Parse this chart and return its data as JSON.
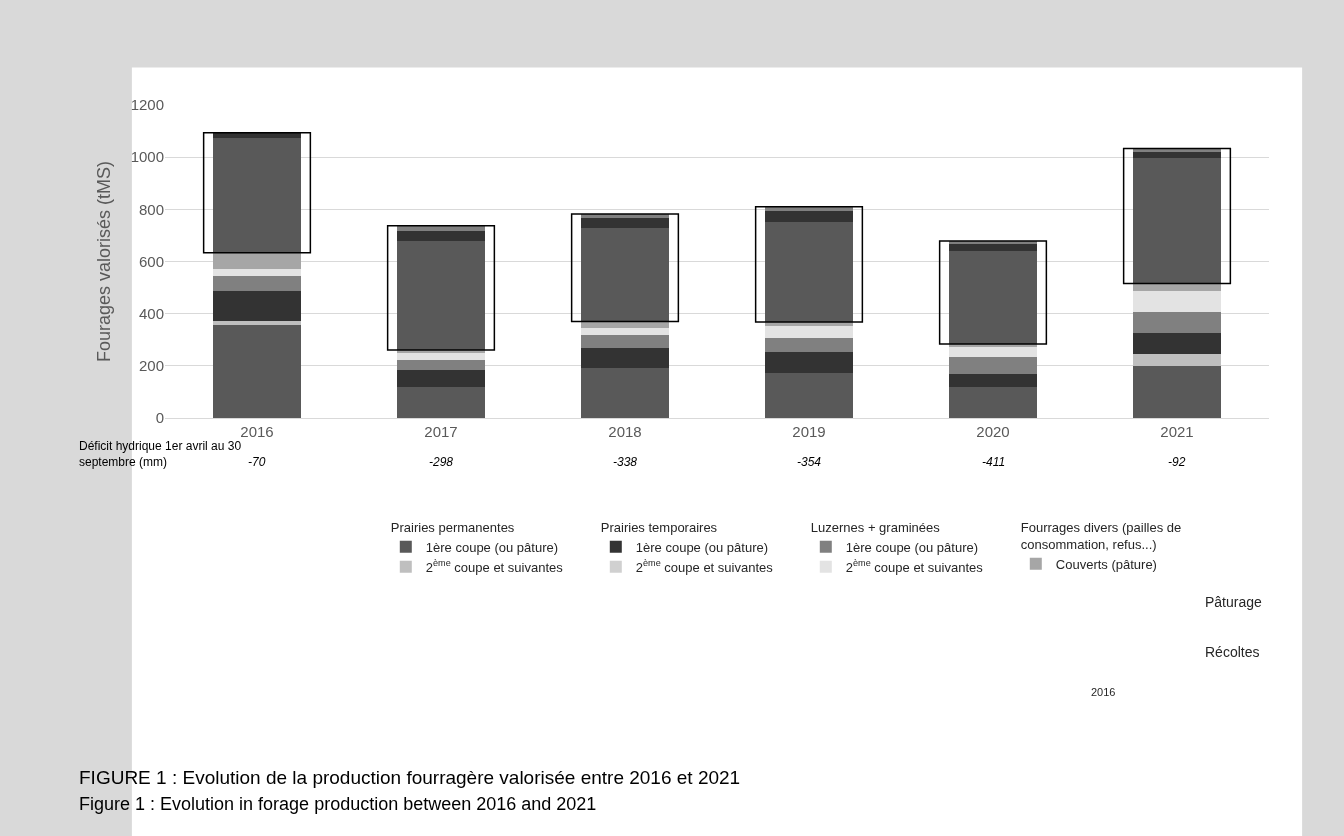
{
  "chart_data": {
    "type": "bar",
    "stacked": true,
    "ylabel": "Fourages valorisés (tMS)",
    "categories": [
      "2016",
      "2017",
      "2018",
      "2019",
      "2020",
      "2021"
    ],
    "series": [
      {
        "name": "1ère coupe (ou pâture)",
        "color": "#595959",
        "values": [
          355,
          120,
          190,
          171,
          120,
          201
        ]
      },
      {
        "name": "2$^{ème}$ coupe et suivantes",
        "color": "#bfbfbf",
        "values": [
          15,
          0,
          0,
          0,
          0,
          44
        ]
      },
      {
        "name": "1ère coupe (ou pâture)",
        "color": "#333333",
        "values": [
          116,
          64,
          78,
          81,
          49,
          81
        ]
      },
      {
        "name": "2$^{ème}$ coupe et suivantes",
        "color": "#d0d0d0",
        "values": [
          0,
          0,
          0,
          0,
          0,
          0
        ]
      },
      {
        "name": "1ère coupe (ou pâture)",
        "color": "#808080",
        "values": [
          58,
          39,
          51,
          54,
          64,
          79
        ]
      },
      {
        "name": "2$^{ème}$ coupe et suivantes",
        "color": "#e3e3e3",
        "values": [
          26,
          25,
          26,
          45,
          41,
          81
        ]
      },
      {
        "name": "Couverts (pâture)",
        "color": "#a6a6a6",
        "values": [
          64,
          13,
          25,
          17,
          10,
          30
        ]
      },
      {
        "color": "#595959",
        "values": [
          440,
          418,
          360,
          384,
          356,
          481
        ]
      },
      {
        "color": "#333333",
        "values": [
          20,
          38,
          36,
          43,
          26,
          23
        ]
      },
      {
        "color": "#808080",
        "values": [
          null,
          20,
          16,
          15,
          13,
          13
        ]
      }
    ],
    "ylim": [
      0,
      1200
    ],
    "yticks": [
      0,
      200,
      400,
      600,
      800,
      1000,
      1200
    ],
    "grid": "y",
    "legend": "bottom",
    "annotations": [
      "Prairies permanentes",
      "Prairies temporaires",
      "Luzernes + graminées",
      "Fourrages divers (pailles de consommation, refus...)",
      "Déficit hydrique 1er avril au 30 septembre (mm)",
      "-70",
      "-298",
      "-338",
      "-354",
      "-411",
      "-92",
      "Pâturage",
      "Récoltes",
      "2016",
      "FIGURE 1 : Evolution de la production fourragère valorisée entre 2016 et 2021",
      "Figure 1 : Evolution in forage production between 2016 and 2021"
    ]
  }
}
